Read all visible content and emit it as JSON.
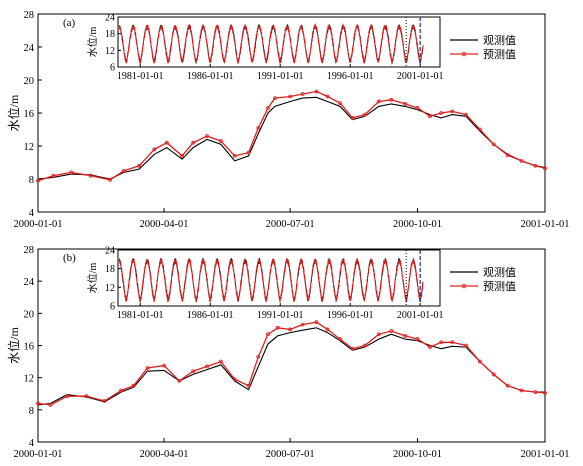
{
  "colors": {
    "observed": "#000000",
    "predicted": "#e02020",
    "dashed": "#2a3a8a",
    "dotted": "#000000"
  },
  "chart_data": [
    {
      "type": "line",
      "panel_label": "(a)",
      "ylabel": "水位/m",
      "ylim": [
        4,
        28
      ],
      "yticks": [
        4,
        8,
        12,
        16,
        20,
        24,
        28
      ],
      "xlim": [
        "2000-01-01",
        "2001-01-01"
      ],
      "xticks": [
        "2000-01-01",
        "2000-04-01",
        "2000-07-01",
        "2000-10-01",
        "2001-01-01"
      ],
      "legend": {
        "placement": "top-right",
        "entries": [
          "观测值",
          "预测值"
        ]
      },
      "series": [
        {
          "name": "观测值",
          "role": "observed",
          "x": [
            "2000-01-01",
            "2000-01-12",
            "2000-01-25",
            "2000-02-08",
            "2000-02-22",
            "2000-03-03",
            "2000-03-14",
            "2000-03-25",
            "2000-04-03",
            "2000-04-14",
            "2000-04-22",
            "2000-05-02",
            "2000-05-12",
            "2000-05-22",
            "2000-06-01",
            "2000-06-08",
            "2000-06-15",
            "2000-06-20",
            "2000-07-01",
            "2000-07-10",
            "2000-07-20",
            "2000-07-28",
            "2000-08-06",
            "2000-08-15",
            "2000-08-24",
            "2000-09-03",
            "2000-09-12",
            "2000-09-22",
            "2000-10-01",
            "2000-10-10",
            "2000-10-18",
            "2000-10-26",
            "2000-11-05",
            "2000-11-15",
            "2000-11-25",
            "2000-12-05",
            "2000-12-15",
            "2000-12-25",
            "2001-01-01"
          ],
          "y": [
            8.0,
            8.2,
            8.6,
            8.5,
            8.0,
            8.8,
            9.2,
            11.0,
            11.8,
            10.4,
            11.8,
            12.8,
            12.2,
            10.2,
            10.8,
            13.5,
            16.0,
            16.8,
            17.4,
            17.8,
            17.9,
            17.4,
            16.8,
            15.2,
            15.6,
            16.8,
            17.1,
            16.8,
            16.4,
            15.8,
            15.4,
            15.8,
            15.6,
            13.8,
            12.2,
            11.0,
            10.2,
            9.6,
            9.4
          ]
        },
        {
          "name": "预测值",
          "role": "predicted",
          "x": [
            "2000-01-01",
            "2000-01-12",
            "2000-01-25",
            "2000-02-08",
            "2000-02-22",
            "2000-03-03",
            "2000-03-14",
            "2000-03-25",
            "2000-04-03",
            "2000-04-14",
            "2000-04-22",
            "2000-05-02",
            "2000-05-12",
            "2000-05-22",
            "2000-06-01",
            "2000-06-08",
            "2000-06-15",
            "2000-06-20",
            "2000-07-01",
            "2000-07-10",
            "2000-07-20",
            "2000-07-28",
            "2000-08-06",
            "2000-08-15",
            "2000-08-24",
            "2000-09-03",
            "2000-09-12",
            "2000-09-22",
            "2000-10-01",
            "2000-10-10",
            "2000-10-18",
            "2000-10-26",
            "2000-11-05",
            "2000-11-15",
            "2000-11-25",
            "2000-12-05",
            "2000-12-15",
            "2000-12-25",
            "2001-01-01"
          ],
          "y": [
            7.8,
            8.4,
            8.8,
            8.4,
            7.9,
            9.0,
            9.6,
            11.6,
            12.4,
            10.8,
            12.4,
            13.2,
            12.6,
            10.8,
            11.2,
            14.2,
            16.6,
            17.8,
            18.0,
            18.3,
            18.6,
            18.0,
            17.2,
            15.4,
            15.8,
            17.4,
            17.6,
            17.1,
            16.6,
            15.6,
            16.0,
            16.2,
            15.8,
            14.0,
            12.2,
            10.9,
            10.2,
            9.6,
            9.3
          ]
        }
      ],
      "inset": {
        "ylabel": "水位/m",
        "ylim": [
          6,
          24
        ],
        "yticks": [
          6,
          12,
          18,
          24
        ],
        "xlim": [
          "1979-06-01",
          "2002-06-01"
        ],
        "xticks": [
          "1981-01-01",
          "1986-01-01",
          "1991-01-01",
          "1996-01-01",
          "2001-01-01"
        ],
        "pattern": {
          "cycles_per_year": 1,
          "low": 8,
          "high": 20.5,
          "start_year": 1979.5,
          "end_year": 2001.2
        },
        "markers": [
          {
            "style": "dotted",
            "x": "2000-01-01"
          },
          {
            "style": "dashed",
            "x": "2001-01-01"
          }
        ]
      }
    },
    {
      "type": "line",
      "panel_label": "(b)",
      "ylabel": "水位/m",
      "ylim": [
        4,
        28
      ],
      "yticks": [
        4,
        8,
        12,
        16,
        20,
        24,
        28
      ],
      "xlim": [
        "2000-01-01",
        "2001-01-01"
      ],
      "xticks": [
        "2000-01-01",
        "2000-04-01",
        "2000-07-01",
        "2000-10-01",
        "2001-01-01"
      ],
      "legend": {
        "placement": "top-right",
        "entries": [
          "观测值",
          "预测值"
        ]
      },
      "series": [
        {
          "name": "观测值",
          "role": "observed",
          "x": [
            "2000-01-01",
            "2000-01-10",
            "2000-01-22",
            "2000-02-05",
            "2000-02-18",
            "2000-03-01",
            "2000-03-10",
            "2000-03-20",
            "2000-04-01",
            "2000-04-12",
            "2000-04-22",
            "2000-05-02",
            "2000-05-12",
            "2000-05-22",
            "2000-06-01",
            "2000-06-08",
            "2000-06-15",
            "2000-06-22",
            "2000-07-01",
            "2000-07-10",
            "2000-07-20",
            "2000-07-28",
            "2000-08-06",
            "2000-08-15",
            "2000-08-24",
            "2000-09-03",
            "2000-09-12",
            "2000-09-22",
            "2000-10-01",
            "2000-10-10",
            "2000-10-18",
            "2000-10-26",
            "2000-11-05",
            "2000-11-15",
            "2000-11-25",
            "2000-12-05",
            "2000-12-15",
            "2000-12-25",
            "2001-01-01"
          ],
          "y": [
            8.6,
            8.8,
            9.9,
            9.6,
            9.0,
            10.2,
            10.8,
            12.8,
            12.9,
            11.6,
            12.4,
            13.0,
            13.6,
            11.6,
            10.5,
            13.4,
            16.2,
            17.2,
            17.6,
            17.9,
            18.2,
            17.6,
            16.6,
            15.4,
            15.8,
            16.8,
            17.4,
            16.8,
            16.6,
            16.0,
            15.6,
            15.9,
            15.8,
            14.0,
            12.4,
            11.0,
            10.4,
            10.2,
            10.2
          ]
        },
        {
          "name": "预测值",
          "role": "predicted",
          "x": [
            "2000-01-01",
            "2000-01-10",
            "2000-01-22",
            "2000-02-05",
            "2000-02-18",
            "2000-03-01",
            "2000-03-10",
            "2000-03-20",
            "2000-04-01",
            "2000-04-12",
            "2000-04-22",
            "2000-05-02",
            "2000-05-12",
            "2000-05-22",
            "2000-06-01",
            "2000-06-08",
            "2000-06-15",
            "2000-06-22",
            "2000-07-01",
            "2000-07-10",
            "2000-07-20",
            "2000-07-28",
            "2000-08-06",
            "2000-08-15",
            "2000-08-24",
            "2000-09-03",
            "2000-09-12",
            "2000-09-22",
            "2000-10-01",
            "2000-10-10",
            "2000-10-18",
            "2000-10-26",
            "2000-11-05",
            "2000-11-15",
            "2000-11-25",
            "2000-12-05",
            "2000-12-15",
            "2000-12-25",
            "2001-01-01"
          ],
          "y": [
            8.8,
            8.6,
            9.7,
            9.7,
            9.1,
            10.4,
            11.0,
            13.2,
            13.5,
            11.6,
            12.8,
            13.4,
            14.0,
            11.8,
            11.0,
            14.6,
            17.4,
            18.2,
            18.0,
            18.6,
            18.9,
            18.0,
            16.8,
            15.6,
            16.0,
            17.4,
            17.8,
            17.2,
            16.8,
            15.8,
            16.4,
            16.4,
            16.0,
            14.0,
            12.4,
            11.0,
            10.4,
            10.2,
            10.1
          ]
        }
      ],
      "inset": {
        "ylabel": "水位/m",
        "ylim": [
          6,
          24
        ],
        "yticks": [
          6,
          12,
          18,
          24
        ],
        "xlim": [
          "1979-06-01",
          "2002-06-01"
        ],
        "xticks": [
          "1981-01-01",
          "1986-01-01",
          "1991-01-01",
          "1996-01-01",
          "2001-01-01"
        ],
        "pattern": {
          "cycles_per_year": 1,
          "low": 8,
          "high": 20.5,
          "start_year": 1979.5,
          "end_year": 2001.2
        },
        "markers": [
          {
            "style": "dotted",
            "x": "2000-01-01"
          },
          {
            "style": "dashed",
            "x": "2001-01-01"
          }
        ]
      }
    }
  ]
}
